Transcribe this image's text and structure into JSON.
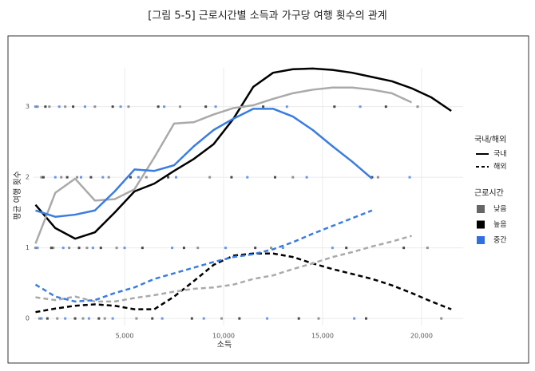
{
  "chart_data": {
    "type": "line",
    "title": "[그림 5-5] 근로시간별 소득과 가구당 여행 횟수의 관계",
    "xlabel": "소득",
    "ylabel": "평균 여행 횟수",
    "xlim": [
      400,
      22100
    ],
    "ylim": [
      -0.1,
      3.55
    ],
    "xticks": [
      {
        "value": 5000,
        "label": "5,000"
      },
      {
        "value": 10000,
        "label": "10,000"
      },
      {
        "value": 15000,
        "label": "15,000"
      },
      {
        "value": 20000,
        "label": "20,000"
      }
    ],
    "yticks": [
      0,
      1,
      2,
      3
    ],
    "grid": true,
    "x": [
      500,
      1500,
      2500,
      3500,
      4500,
      5500,
      6500,
      7500,
      8500,
      9500,
      10500,
      11500,
      12500,
      13500,
      14500,
      15500,
      16500,
      17500,
      18500,
      19500,
      20500,
      21500
    ],
    "series": [
      {
        "color": "#000000",
        "dashed": false,
        "values": [
          1.61,
          1.28,
          1.13,
          1.22,
          1.5,
          1.8,
          1.91,
          2.09,
          2.26,
          2.47,
          2.83,
          3.28,
          3.48,
          3.53,
          3.54,
          3.52,
          3.48,
          3.42,
          3.36,
          3.26,
          3.13,
          2.94
        ]
      },
      {
        "color": "#aaaaaa",
        "dashed": false,
        "values": [
          1.06,
          1.78,
          1.98,
          1.67,
          1.69,
          1.83,
          2.28,
          2.76,
          2.78,
          2.89,
          2.98,
          3.02,
          3.11,
          3.19,
          3.24,
          3.27,
          3.27,
          3.24,
          3.19,
          3.06,
          null,
          null
        ]
      },
      {
        "color": "#3a7de0",
        "dashed": false,
        "values": [
          1.53,
          1.44,
          1.47,
          1.53,
          1.8,
          2.11,
          2.09,
          2.17,
          2.44,
          2.67,
          2.83,
          2.97,
          2.97,
          2.86,
          2.67,
          2.44,
          2.22,
          1.98,
          null,
          null,
          null,
          null
        ]
      },
      {
        "color": "#000000",
        "dashed": true,
        "values": [
          0.09,
          0.14,
          0.18,
          0.2,
          0.18,
          0.13,
          0.13,
          0.31,
          0.53,
          0.76,
          0.89,
          0.92,
          0.92,
          0.87,
          0.78,
          0.7,
          0.63,
          0.56,
          0.47,
          0.36,
          0.24,
          0.13
        ]
      },
      {
        "color": "#aaaaaa",
        "dashed": true,
        "values": [
          0.3,
          0.26,
          0.31,
          0.24,
          0.24,
          0.29,
          0.33,
          0.38,
          0.42,
          0.44,
          0.48,
          0.56,
          0.61,
          0.7,
          0.78,
          0.87,
          0.94,
          1.02,
          1.09,
          1.17,
          null,
          null
        ]
      },
      {
        "color": "#3a7de0",
        "dashed": true,
        "values": [
          0.48,
          0.31,
          0.24,
          0.26,
          0.36,
          0.44,
          0.56,
          0.64,
          0.72,
          0.8,
          0.87,
          0.91,
          0.98,
          1.08,
          1.2,
          1.31,
          1.42,
          1.53,
          null,
          null,
          null,
          null
        ]
      }
    ],
    "linetype_legend": {
      "title": "국내/해외",
      "items": [
        "국내",
        "해외"
      ]
    },
    "groups": {
      "title": "근로시간",
      "items": [
        {
          "name": "낮음",
          "color": "#666666",
          "x": [
            600,
            1200,
            2000,
            3500,
            5200,
            7800,
            11000,
            19800,
            800,
            1800,
            2600,
            4200,
            6100,
            9300,
            13500,
            17800,
            500,
            1400,
            2200,
            3100,
            4600,
            8700,
            12400,
            20300,
            700,
            1600,
            2900,
            4000,
            5600,
            9900,
            14800,
            21000
          ],
          "y": [
            3,
            3,
            3,
            3,
            3,
            3,
            3,
            3,
            2,
            2,
            2,
            2,
            2,
            2,
            2,
            2,
            1,
            1,
            1,
            1,
            1,
            1,
            1,
            1,
            0,
            0,
            0,
            0,
            0,
            0,
            0,
            0
          ]
        },
        {
          "name": "높음",
          "color": "#000000",
          "x": [
            1000,
            2400,
            4400,
            6700,
            9100,
            12000,
            15600,
            18200,
            900,
            2100,
            3300,
            5300,
            7200,
            10400,
            12600,
            17500,
            1300,
            2700,
            3800,
            5900,
            8000,
            11600,
            16200,
            19100,
            1100,
            2500,
            3700,
            6400,
            8400,
            10800,
            13800,
            17200
          ],
          "y": [
            3,
            3,
            3,
            3,
            3,
            3,
            3,
            3,
            2,
            2,
            2,
            2,
            2,
            2,
            2,
            2,
            1,
            1,
            1,
            1,
            1,
            1,
            1,
            1,
            0,
            0,
            0,
            0,
            0,
            0,
            0,
            0
          ]
        },
        {
          "name": "중간",
          "color": "#2f6fe0",
          "x": [
            500,
            1700,
            3000,
            4800,
            7000,
            9600,
            13200,
            16900,
            1500,
            2800,
            3900,
            5700,
            7600,
            11200,
            14200,
            19400,
            600,
            1900,
            3400,
            5000,
            7400,
            10100,
            13000,
            15500,
            800,
            2000,
            3200,
            4400,
            6900,
            9000,
            12200,
            16600
          ],
          "y": [
            3,
            3,
            3,
            3,
            3,
            3,
            3,
            3,
            2,
            2,
            2,
            2,
            2,
            2,
            2,
            2,
            1,
            1,
            1,
            1,
            1,
            1,
            1,
            1,
            0,
            0,
            0,
            0,
            0,
            0,
            0,
            0
          ]
        }
      ]
    }
  }
}
